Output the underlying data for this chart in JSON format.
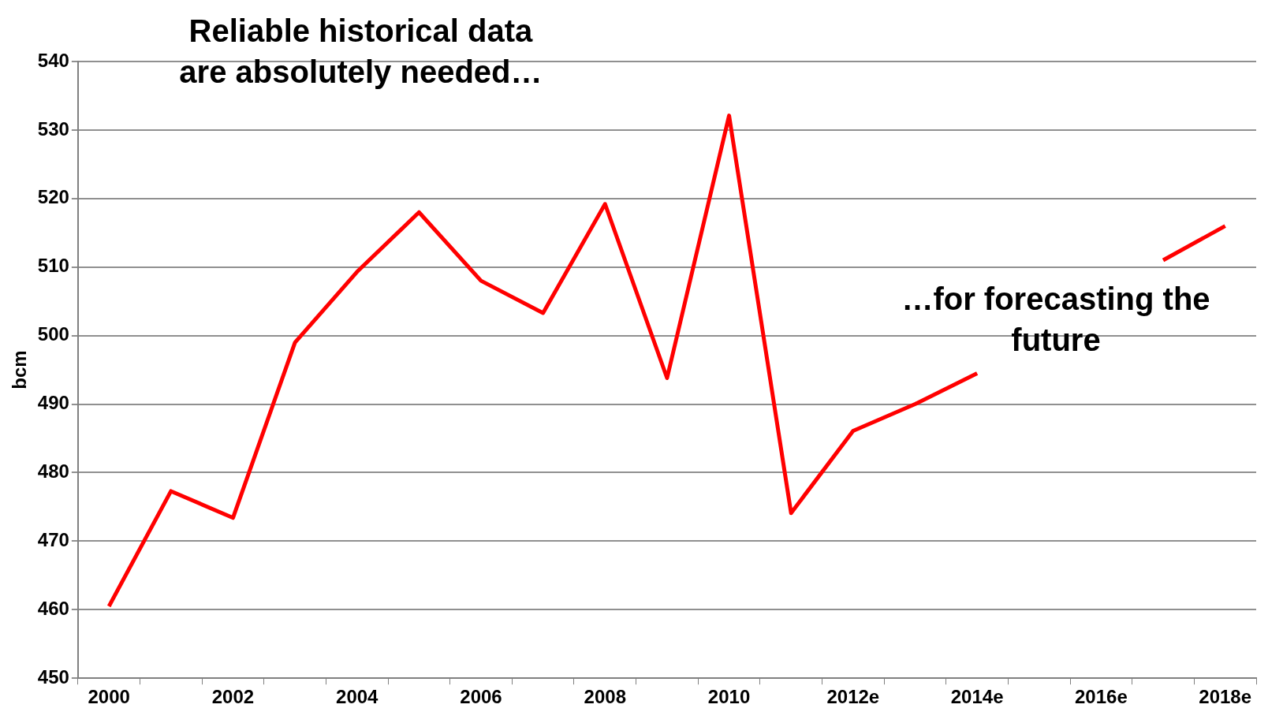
{
  "chart_data": {
    "type": "line",
    "ylabel": "bcm",
    "categories": [
      "2000",
      null,
      "2002",
      null,
      "2004",
      null,
      "2006",
      null,
      "2008",
      null,
      "2010",
      null,
      "2012e",
      null,
      "2014e",
      null,
      "2016e",
      null,
      "2018e"
    ],
    "values": [
      460.5,
      477.3,
      473.4,
      499,
      509.3,
      518,
      508,
      503.3,
      519.2,
      493.8,
      532.1,
      474.1,
      486.1,
      490,
      494.5,
      null,
      null,
      511,
      516
    ],
    "color": "#ff0000",
    "ylim": [
      450,
      540
    ],
    "yticks": [
      450,
      460,
      470,
      480,
      490,
      500,
      510,
      520,
      530,
      540
    ],
    "grid": "y",
    "legend": false,
    "marker": "none",
    "line_style": "solid",
    "annotations": [
      "Reliable historical data\nare absolutely needed…",
      "…for forecasting the\nfuture"
    ]
  }
}
